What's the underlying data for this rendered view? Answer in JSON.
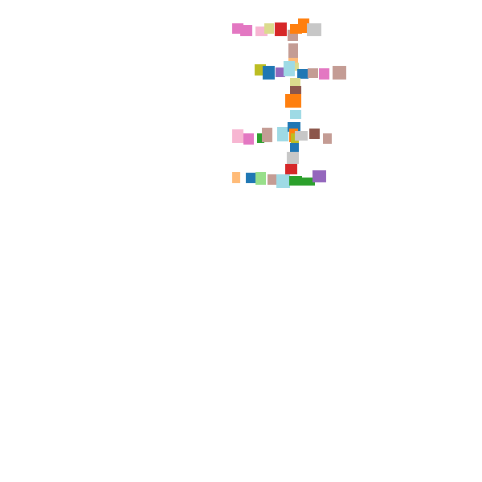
{
  "page": {
    "background": "#ffffff"
  },
  "palette": {
    "blue": "#1f77b4",
    "orange": "#ff7f0e",
    "green": "#2ca02c",
    "red": "#d62728",
    "purple": "#9467bd",
    "brown": "#8c564b",
    "pink": "#e377c2",
    "olive": "#bcbd22",
    "light-blue": "#9edae5",
    "light-orange": "#ffbb78",
    "light-green": "#98df8a",
    "light-pink": "#f7b6d2",
    "khaki": "#dbdb8d",
    "rosy-brown": "#c49c94",
    "light-gray": "#c7c7c7"
  },
  "rows": [
    {
      "name": "row-1",
      "cells": [
        "pink",
        "pink",
        "light-pink",
        "khaki",
        "red",
        "rosy-brown",
        "orange",
        "orange",
        "light-gray"
      ]
    },
    {
      "name": "row-2",
      "cells": [
        "rosy-brown",
        "light-orange",
        "khaki",
        "olive",
        "blue",
        "purple",
        "light-blue",
        "blue",
        "rosy-brown",
        "pink",
        "rosy-brown",
        "khaki",
        "brown",
        "orange",
        "light-blue"
      ]
    },
    {
      "name": "row-3",
      "cells": [
        "light-pink",
        "pink",
        "green",
        "rosy-brown",
        "light-blue",
        "blue",
        "orange",
        "olive",
        "light-gray",
        "brown",
        "rosy-brown",
        "blue",
        "light-gray",
        "red"
      ]
    },
    {
      "name": "row-4",
      "cells": [
        "light-orange",
        "blue",
        "light-green",
        "rosy-brown",
        "light-blue",
        "green",
        "green",
        "purple"
      ]
    }
  ]
}
